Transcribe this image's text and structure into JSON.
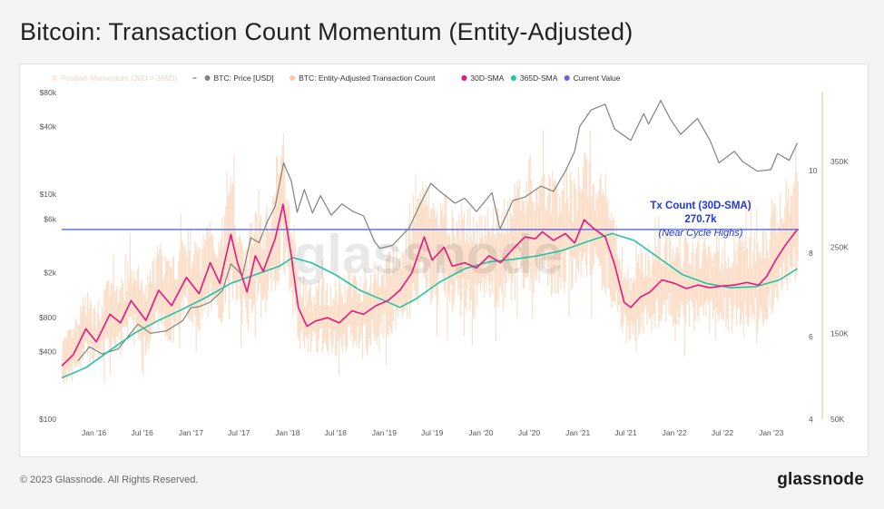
{
  "page": {
    "title": "Bitcoin: Transaction Count Momentum (Entity-Adjusted)",
    "copyright": "© 2023 Glassnode. All Rights Reserved.",
    "logo": "glassnode",
    "watermark": "glassnode"
  },
  "chart_data": {
    "type": "line",
    "legend": [
      {
        "label": "Positive Momentum (30D > 365D)",
        "color": "#fbe3cf",
        "faded": true
      },
      {
        "label": "BTC: Price [USD]",
        "color": "#7d837e"
      },
      {
        "label": "BTC: Entity-Adjusted Transaction Count",
        "color": "#f7c8a4"
      },
      {
        "label": "30D-SMA",
        "color": "#e8157c"
      },
      {
        "label": "365D-SMA",
        "color": "#22c3a6"
      },
      {
        "label": "Current Value",
        "color": "#5468e2"
      }
    ],
    "x_ticks": [
      "Jan '16",
      "Jul '16",
      "Jan '17",
      "Jul '17",
      "Jan '18",
      "Jul '18",
      "Jan '19",
      "Jul '19",
      "Jan '20",
      "Jul '20",
      "Jan '21",
      "Jul '21",
      "Jan '22",
      "Jul '22",
      "Jan '23"
    ],
    "x_range": [
      "2015-09-01",
      "2023-04-15"
    ],
    "y_left": {
      "ticks": [
        "$100",
        "$400",
        "$800",
        "$2k",
        "$6k",
        "$10k",
        "$40k",
        "$80k"
      ],
      "values": [
        100,
        400,
        800,
        2000,
        6000,
        10000,
        40000,
        80000
      ],
      "scale": "log",
      "range": [
        100,
        80000
      ]
    },
    "y_mid": {
      "ticks": [
        "4",
        "6",
        "8",
        "10"
      ],
      "values": [
        4,
        6,
        8,
        10
      ]
    },
    "y_right": {
      "ticks": [
        "50K",
        "150K",
        "250K",
        "350K"
      ],
      "values": [
        50000,
        150000,
        250000,
        350000
      ],
      "range": [
        50000,
        430000
      ]
    },
    "annotation": {
      "line1": "Tx Count (30D-SMA)",
      "line2": "270.7k",
      "line3": "(Near Cycle Highs)"
    },
    "current_value": 270700,
    "series": [
      {
        "name": "BTC: Price [USD]",
        "axis": "left",
        "points": [
          [
            "2015-11-01",
            330
          ],
          [
            "2015-12-15",
            440
          ],
          [
            "2016-02-01",
            380
          ],
          [
            "2016-04-01",
            420
          ],
          [
            "2016-06-15",
            700
          ],
          [
            "2016-08-01",
            580
          ],
          [
            "2016-10-01",
            610
          ],
          [
            "2016-12-01",
            750
          ],
          [
            "2017-01-01",
            980
          ],
          [
            "2017-02-01",
            1000
          ],
          [
            "2017-03-15",
            1100
          ],
          [
            "2017-05-01",
            1400
          ],
          [
            "2017-06-01",
            2400
          ],
          [
            "2017-07-15",
            1900
          ],
          [
            "2017-08-15",
            4100
          ],
          [
            "2017-09-15",
            3700
          ],
          [
            "2017-10-15",
            5600
          ],
          [
            "2017-11-15",
            7800
          ],
          [
            "2017-12-17",
            19000
          ],
          [
            "2018-01-15",
            13000
          ],
          [
            "2018-02-06",
            6900
          ],
          [
            "2018-03-05",
            11000
          ],
          [
            "2018-04-05",
            6800
          ],
          [
            "2018-05-05",
            9700
          ],
          [
            "2018-06-15",
            6500
          ],
          [
            "2018-07-25",
            8200
          ],
          [
            "2018-09-01",
            7100
          ],
          [
            "2018-10-15",
            6400
          ],
          [
            "2018-11-25",
            3800
          ],
          [
            "2018-12-15",
            3300
          ],
          [
            "2019-02-01",
            3500
          ],
          [
            "2019-04-05",
            5000
          ],
          [
            "2019-05-15",
            8000
          ],
          [
            "2019-06-26",
            12500
          ],
          [
            "2019-08-01",
            10500
          ],
          [
            "2019-09-25",
            8300
          ],
          [
            "2019-11-01",
            9200
          ],
          [
            "2019-12-15",
            7000
          ],
          [
            "2020-02-12",
            10300
          ],
          [
            "2020-03-13",
            4900
          ],
          [
            "2020-05-01",
            8800
          ],
          [
            "2020-06-15",
            9400
          ],
          [
            "2020-08-15",
            11800
          ],
          [
            "2020-10-01",
            10600
          ],
          [
            "2020-11-15",
            16000
          ],
          [
            "2020-12-20",
            24000
          ],
          [
            "2021-01-08",
            40000
          ],
          [
            "2021-02-20",
            56000
          ],
          [
            "2021-04-14",
            63000
          ],
          [
            "2021-05-20",
            38000
          ],
          [
            "2021-07-20",
            30000
          ],
          [
            "2021-09-07",
            52000
          ],
          [
            "2021-09-25",
            42000
          ],
          [
            "2021-11-10",
            68000
          ],
          [
            "2021-12-15",
            47000
          ],
          [
            "2022-01-24",
            34000
          ],
          [
            "2022-03-29",
            47000
          ],
          [
            "2022-05-15",
            30000
          ],
          [
            "2022-06-18",
            19000
          ],
          [
            "2022-08-15",
            24000
          ],
          [
            "2022-09-15",
            19500
          ],
          [
            "2022-11-10",
            16000
          ],
          [
            "2022-12-31",
            16500
          ],
          [
            "2023-01-25",
            23000
          ],
          [
            "2023-03-10",
            20000
          ],
          [
            "2023-04-10",
            28500
          ]
        ]
      },
      {
        "name": "30D-SMA",
        "axis": "right",
        "points": [
          [
            "2015-09-01",
            112000
          ],
          [
            "2015-10-15",
            125000
          ],
          [
            "2015-12-01",
            155000
          ],
          [
            "2016-01-10",
            140000
          ],
          [
            "2016-03-01",
            172000
          ],
          [
            "2016-04-10",
            162000
          ],
          [
            "2016-05-20",
            188000
          ],
          [
            "2016-07-15",
            165000
          ],
          [
            "2016-09-01",
            200000
          ],
          [
            "2016-10-20",
            182000
          ],
          [
            "2016-12-15",
            215000
          ],
          [
            "2017-02-01",
            196000
          ],
          [
            "2017-03-15",
            232000
          ],
          [
            "2017-04-20",
            208000
          ],
          [
            "2017-06-01",
            265000
          ],
          [
            "2017-06-25",
            233000
          ],
          [
            "2017-08-01",
            198000
          ],
          [
            "2017-09-01",
            240000
          ],
          [
            "2017-10-01",
            222000
          ],
          [
            "2017-11-15",
            260000
          ],
          [
            "2017-12-15",
            300000
          ],
          [
            "2018-01-15",
            240000
          ],
          [
            "2018-02-10",
            180000
          ],
          [
            "2018-03-15",
            158000
          ],
          [
            "2018-04-15",
            164000
          ],
          [
            "2018-06-01",
            168000
          ],
          [
            "2018-07-15",
            162000
          ],
          [
            "2018-09-01",
            176000
          ],
          [
            "2018-10-15",
            172000
          ],
          [
            "2018-12-01",
            182000
          ],
          [
            "2019-01-15",
            188000
          ],
          [
            "2019-03-01",
            200000
          ],
          [
            "2019-04-15",
            220000
          ],
          [
            "2019-06-01",
            262000
          ],
          [
            "2019-07-01",
            235000
          ],
          [
            "2019-08-15",
            250000
          ],
          [
            "2019-09-15",
            228000
          ],
          [
            "2019-11-01",
            232000
          ],
          [
            "2019-12-15",
            226000
          ],
          [
            "2020-02-01",
            240000
          ],
          [
            "2020-03-15",
            232000
          ],
          [
            "2020-05-01",
            248000
          ],
          [
            "2020-06-15",
            262000
          ],
          [
            "2020-07-25",
            260000
          ],
          [
            "2020-08-20",
            268000
          ],
          [
            "2020-10-01",
            258000
          ],
          [
            "2020-11-15",
            266000
          ],
          [
            "2020-12-20",
            255000
          ],
          [
            "2021-01-25",
            282000
          ],
          [
            "2021-03-01",
            272000
          ],
          [
            "2021-04-15",
            262000
          ],
          [
            "2021-05-20",
            230000
          ],
          [
            "2021-06-25",
            186000
          ],
          [
            "2021-07-20",
            180000
          ],
          [
            "2021-08-25",
            192000
          ],
          [
            "2021-10-01",
            198000
          ],
          [
            "2021-11-15",
            212000
          ],
          [
            "2022-01-01",
            208000
          ],
          [
            "2022-02-15",
            202000
          ],
          [
            "2022-04-01",
            206000
          ],
          [
            "2022-05-15",
            203000
          ],
          [
            "2022-07-01",
            205000
          ],
          [
            "2022-08-15",
            206000
          ],
          [
            "2022-10-01",
            209000
          ],
          [
            "2022-11-15",
            206000
          ],
          [
            "2022-12-15",
            216000
          ],
          [
            "2023-01-20",
            236000
          ],
          [
            "2023-02-25",
            253000
          ],
          [
            "2023-04-10",
            270700
          ]
        ]
      },
      {
        "name": "365D-SMA",
        "axis": "right",
        "points": [
          [
            "2015-09-01",
            98000
          ],
          [
            "2015-12-01",
            110000
          ],
          [
            "2016-03-01",
            130000
          ],
          [
            "2016-06-01",
            150000
          ],
          [
            "2016-09-01",
            165000
          ],
          [
            "2016-12-01",
            178000
          ],
          [
            "2017-03-01",
            192000
          ],
          [
            "2017-06-01",
            208000
          ],
          [
            "2017-09-01",
            218000
          ],
          [
            "2017-12-01",
            228000
          ],
          [
            "2018-01-20",
            238000
          ],
          [
            "2018-04-01",
            232000
          ],
          [
            "2018-07-01",
            218000
          ],
          [
            "2018-10-01",
            200000
          ],
          [
            "2019-01-01",
            188000
          ],
          [
            "2019-03-01",
            180000
          ],
          [
            "2019-05-01",
            190000
          ],
          [
            "2019-08-01",
            210000
          ],
          [
            "2019-11-01",
            225000
          ],
          [
            "2020-02-01",
            233000
          ],
          [
            "2020-05-01",
            236000
          ],
          [
            "2020-08-01",
            240000
          ],
          [
            "2020-11-01",
            246000
          ],
          [
            "2021-02-01",
            256000
          ],
          [
            "2021-05-10",
            266000
          ],
          [
            "2021-08-01",
            258000
          ],
          [
            "2021-11-01",
            238000
          ],
          [
            "2022-02-01",
            218000
          ],
          [
            "2022-05-01",
            208000
          ],
          [
            "2022-08-01",
            203000
          ],
          [
            "2022-11-01",
            204000
          ],
          [
            "2023-02-01",
            212000
          ],
          [
            "2023-04-10",
            225000
          ]
        ]
      }
    ]
  }
}
